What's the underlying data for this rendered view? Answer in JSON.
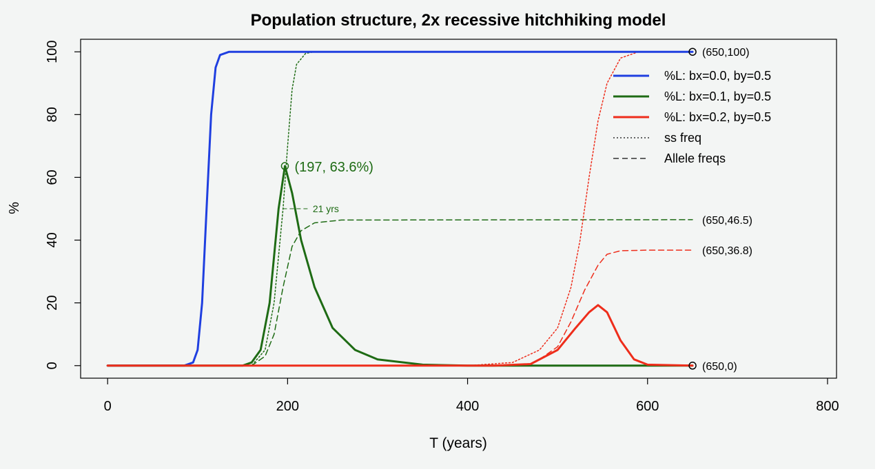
{
  "chart_data": {
    "type": "line",
    "title": "Population structure, 2x recessive hitchhiking model",
    "xlabel": "T (years)",
    "ylabel": "%",
    "xlim": [
      -30,
      810
    ],
    "ylim": [
      -4,
      104
    ],
    "x_ticks": [
      "0",
      "200",
      "400",
      "600",
      "800"
    ],
    "y_ticks": [
      "0",
      "20",
      "40",
      "60",
      "80",
      "100"
    ],
    "grid": false,
    "legend_position": "top-right",
    "legend": [
      {
        "label": "%L: bx=0.0, by=0.5",
        "color": "#1f3fe0",
        "style": "solid"
      },
      {
        "label": "%L: bx=0.1, by=0.5",
        "color": "#1e6b14",
        "style": "solid"
      },
      {
        "label": "%L: bx=0.2, by=0.5",
        "color": "#ee2d1b",
        "style": "solid"
      },
      {
        "label": "ss freq",
        "color": "#333333",
        "style": "dotted"
      },
      {
        "label": "Allele freqs",
        "color": "#333333",
        "style": "dashed"
      }
    ],
    "series": [
      {
        "name": "%L: bx=0.0, by=0.5",
        "color": "#1f3fe0",
        "style": "solid",
        "points": [
          [
            0,
            0
          ],
          [
            85,
            0
          ],
          [
            95,
            1
          ],
          [
            100,
            5
          ],
          [
            105,
            20
          ],
          [
            110,
            50
          ],
          [
            115,
            80
          ],
          [
            120,
            95
          ],
          [
            125,
            99
          ],
          [
            135,
            100
          ],
          [
            650,
            100
          ]
        ]
      },
      {
        "name": "%L: bx=0.1, by=0.5",
        "color": "#1e6b14",
        "style": "solid",
        "points": [
          [
            0,
            0
          ],
          [
            150,
            0
          ],
          [
            160,
            1
          ],
          [
            170,
            5
          ],
          [
            180,
            20
          ],
          [
            190,
            50
          ],
          [
            197,
            63.6
          ],
          [
            205,
            55
          ],
          [
            215,
            40
          ],
          [
            230,
            25
          ],
          [
            250,
            12
          ],
          [
            275,
            5
          ],
          [
            300,
            2
          ],
          [
            350,
            0.3
          ],
          [
            400,
            0
          ],
          [
            650,
            0
          ]
        ]
      },
      {
        "name": "%L: bx=0.2, by=0.5",
        "color": "#ee2d1b",
        "style": "solid",
        "points": [
          [
            0,
            0
          ],
          [
            430,
            0
          ],
          [
            470,
            0.5
          ],
          [
            500,
            5
          ],
          [
            520,
            12
          ],
          [
            535,
            17
          ],
          [
            545,
            19.3
          ],
          [
            555,
            17
          ],
          [
            570,
            8
          ],
          [
            585,
            2
          ],
          [
            600,
            0.3
          ],
          [
            650,
            0
          ]
        ]
      },
      {
        "name": "ss freq bx=0.1",
        "color": "#1e6b14",
        "style": "dotted",
        "points": [
          [
            0,
            0
          ],
          [
            160,
            0
          ],
          [
            175,
            5
          ],
          [
            185,
            20
          ],
          [
            195,
            50
          ],
          [
            200,
            70
          ],
          [
            205,
            88
          ],
          [
            210,
            96
          ],
          [
            220,
            99.5
          ],
          [
            230,
            100
          ],
          [
            650,
            100
          ]
        ]
      },
      {
        "name": "Allele freqs bx=0.1",
        "color": "#1e6b14",
        "style": "dashed",
        "points": [
          [
            160,
            0
          ],
          [
            175,
            3
          ],
          [
            185,
            10
          ],
          [
            195,
            25
          ],
          [
            205,
            38
          ],
          [
            215,
            43
          ],
          [
            230,
            45.5
          ],
          [
            260,
            46.4
          ],
          [
            650,
            46.5
          ]
        ]
      },
      {
        "name": "ss freq bx=0.2",
        "color": "#ee2d1b",
        "style": "dotted",
        "points": [
          [
            400,
            0
          ],
          [
            450,
            1
          ],
          [
            480,
            5
          ],
          [
            500,
            12
          ],
          [
            515,
            25
          ],
          [
            525,
            40
          ],
          [
            535,
            60
          ],
          [
            545,
            78
          ],
          [
            555,
            90
          ],
          [
            570,
            98
          ],
          [
            590,
            100
          ],
          [
            650,
            100
          ]
        ]
      },
      {
        "name": "Allele freqs bx=0.2",
        "color": "#ee2d1b",
        "style": "dashed",
        "points": [
          [
            480,
            2
          ],
          [
            500,
            6
          ],
          [
            515,
            14
          ],
          [
            530,
            24
          ],
          [
            545,
            32
          ],
          [
            555,
            35.5
          ],
          [
            570,
            36.6
          ],
          [
            600,
            36.8
          ],
          [
            650,
            36.8
          ]
        ]
      }
    ],
    "markers": [
      {
        "x": 650,
        "y": 100,
        "color": "#000000"
      },
      {
        "x": 650,
        "y": 0,
        "color": "#000000"
      },
      {
        "x": 197,
        "y": 63.6,
        "color": "#1e6b14"
      }
    ],
    "annotations": [
      {
        "text": "(650,100)",
        "x": 650,
        "y": 100,
        "color": "#000000",
        "big": false
      },
      {
        "text": "(650,46.5)",
        "x": 650,
        "y": 46.5,
        "color": "#000000",
        "big": false
      },
      {
        "text": "(650,36.8)",
        "x": 650,
        "y": 36.8,
        "color": "#000000",
        "big": false
      },
      {
        "text": "(650,0)",
        "x": 650,
        "y": 0,
        "color": "#000000",
        "big": false
      },
      {
        "text": "(197, 63.6%)",
        "x": 197,
        "y": 63.6,
        "color": "#1e6b14",
        "big": true
      }
    ],
    "interval": {
      "label": "21 yrs",
      "x0": 187,
      "x1": 208,
      "y": 50,
      "color": "#1e6b14"
    }
  }
}
